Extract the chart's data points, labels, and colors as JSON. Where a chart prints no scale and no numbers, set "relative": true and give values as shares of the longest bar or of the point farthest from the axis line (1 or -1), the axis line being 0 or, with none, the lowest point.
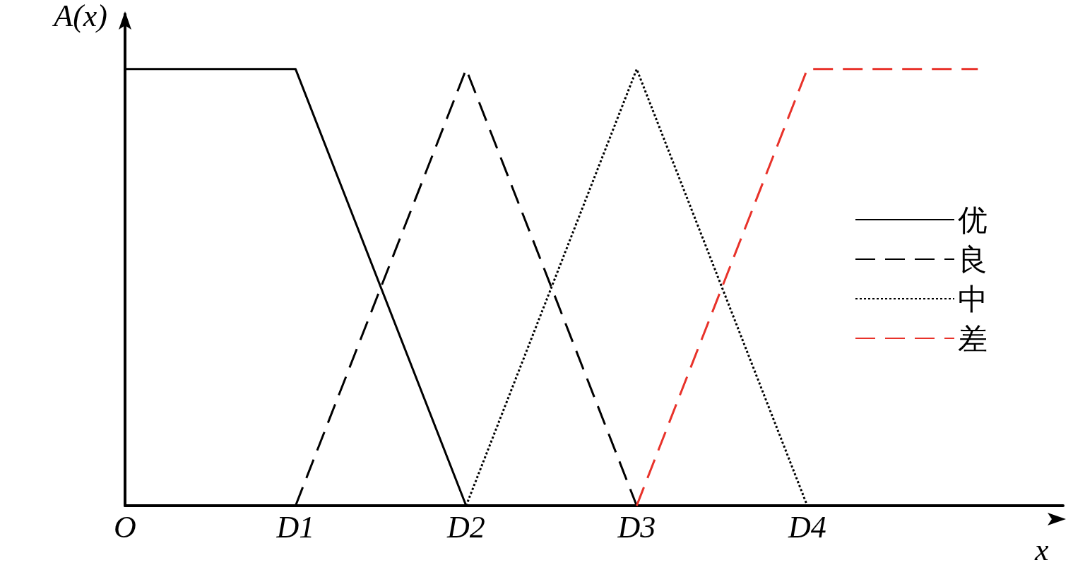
{
  "chart_data": {
    "type": "line",
    "relative": true,
    "xlabel": "x",
    "ylabel": "A(x)",
    "categories": [
      "O",
      "D1",
      "D2",
      "D3",
      "D4",
      null
    ],
    "series": [
      {
        "name": "优",
        "color": "#000000",
        "line_style": "solid",
        "values": [
          1,
          1,
          0,
          null,
          null,
          null
        ]
      },
      {
        "name": "良",
        "color": "#000000",
        "line_style": "dashed",
        "values": [
          null,
          0,
          1,
          0,
          null,
          null
        ]
      },
      {
        "name": "中",
        "color": "#000000",
        "line_style": "dotted",
        "values": [
          null,
          null,
          0,
          1,
          0,
          null
        ]
      },
      {
        "name": "差",
        "color": "#e8322a",
        "line_style": "dashed",
        "values": [
          null,
          null,
          null,
          0,
          1,
          1
        ]
      }
    ],
    "legend": "right",
    "grid": false,
    "marker": "none"
  }
}
